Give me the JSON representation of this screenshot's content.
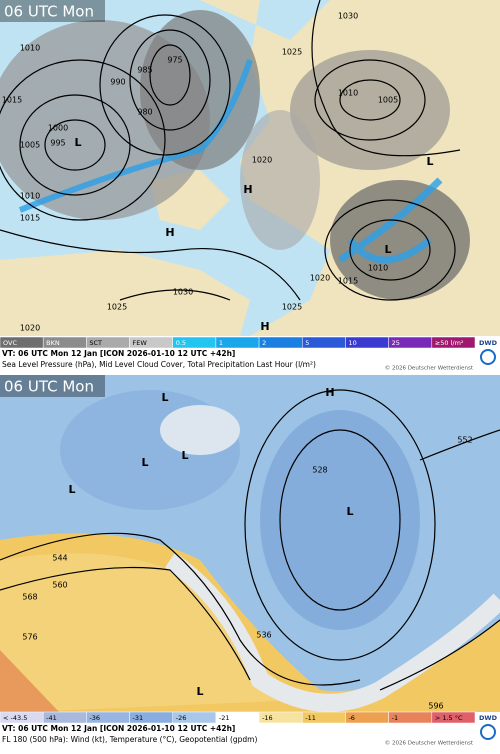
{
  "top": {
    "title": "06 UTC Mon",
    "legend": [
      "OVC",
      "BKN",
      "SCT",
      "FEW",
      "0.5",
      "1",
      "2",
      "5",
      "10",
      "25",
      "≥50 l/m²"
    ],
    "caption_line1": "VT: 06 UTC Mon  12 Jan [ICON 2026-01-10 12 UTC +42h]",
    "caption_line2": "Sea Level Pressure (hPa), Mid Level Cloud Cover, Total Precipitation Last Hour (l/m²)",
    "copyright": "© 2026 Deutscher Wetterdienst",
    "logo": "DWD",
    "labels": [
      "1010",
      "1015",
      "1000",
      "995",
      "1005",
      "1010",
      "1015",
      "985",
      "975",
      "990",
      "980",
      "1030",
      "1025",
      "1010",
      "1005",
      "1020",
      "1020",
      "1015",
      "1010",
      "1025",
      "1030",
      "1025",
      "1020",
      "L",
      "L",
      "L",
      "H",
      "H",
      "H"
    ]
  },
  "bottom": {
    "title": "06 UTC Mon",
    "legend": [
      "< -43.5",
      "-41",
      "-36",
      "-31",
      "-26",
      "-21",
      "-16",
      "-11",
      "-6",
      "-1",
      "> 1.5 °C"
    ],
    "caption_line1": "VT: 06 UTC Mon  12 Jan [ICON 2026-01-10 12 UTC +42h]",
    "caption_line2": "FL 180 (500 hPa): Wind (kt), Temperature (°C), Geopotential (gpdm)",
    "copyright": "© 2026 Deutscher Wetterdienst",
    "logo": "DWD",
    "labels": [
      "544",
      "560",
      "568",
      "576",
      "552",
      "528",
      "536",
      "596",
      "L",
      "L",
      "L",
      "L",
      "L",
      "H",
      "L"
    ]
  }
}
